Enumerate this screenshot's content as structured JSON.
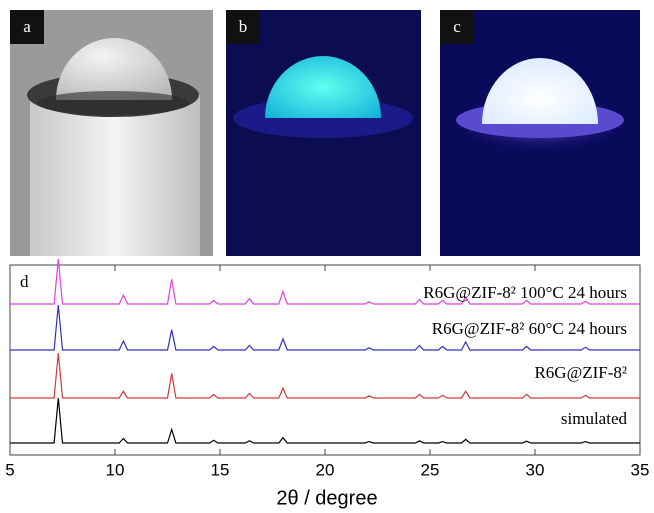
{
  "photos": {
    "labels": [
      "a",
      "b",
      "c"
    ]
  },
  "chart_data": {
    "type": "line",
    "panel_label": "d",
    "x_label": "2θ / degree",
    "x": [
      5,
      7.1,
      7.3,
      7.5,
      10.2,
      10.4,
      10.6,
      12.5,
      12.7,
      12.9,
      14.5,
      14.7,
      14.9,
      16.2,
      16.4,
      16.6,
      17.8,
      18.0,
      18.2,
      21.9,
      22.1,
      22.3,
      24.3,
      24.5,
      24.7,
      25.4,
      25.6,
      25.8,
      26.5,
      26.7,
      26.9,
      29.4,
      29.6,
      29.8,
      32.2,
      32.4,
      32.6,
      35
    ],
    "xlim": [
      5,
      35
    ],
    "xticks": [
      5,
      10,
      15,
      20,
      25,
      30,
      35
    ],
    "series": [
      {
        "name": "simulated",
        "color": "#000000",
        "values": [
          0,
          0,
          100,
          0,
          0,
          10,
          0,
          0,
          30,
          0,
          0,
          6,
          0,
          0,
          5,
          0,
          0,
          12,
          0,
          0,
          3,
          0,
          0,
          5,
          0,
          0,
          3,
          0,
          0,
          8,
          0,
          0,
          4,
          0,
          0,
          3,
          0,
          0
        ]
      },
      {
        "name": "R6G@ZIF-8²",
        "color": "#d03a3a",
        "values": [
          0,
          0,
          100,
          0,
          0,
          15,
          0,
          0,
          55,
          0,
          0,
          8,
          0,
          0,
          10,
          0,
          0,
          22,
          0,
          0,
          5,
          0,
          0,
          8,
          0,
          0,
          6,
          0,
          0,
          15,
          0,
          0,
          8,
          0,
          0,
          6,
          0,
          0
        ]
      },
      {
        "name": "R6G@ZIF-8² 60°C 24 hours",
        "color": "#3030c0",
        "values": [
          0,
          0,
          100,
          0,
          0,
          20,
          0,
          0,
          45,
          0,
          0,
          8,
          0,
          0,
          10,
          0,
          0,
          25,
          0,
          0,
          5,
          0,
          0,
          10,
          0,
          0,
          8,
          0,
          0,
          18,
          0,
          0,
          8,
          0,
          0,
          6,
          0,
          0
        ]
      },
      {
        "name": "R6G@ZIF-8² 100°C 24 hours",
        "color": "#e040e0",
        "values": [
          0,
          0,
          100,
          0,
          0,
          20,
          0,
          0,
          55,
          0,
          0,
          8,
          0,
          0,
          12,
          0,
          0,
          28,
          0,
          0,
          5,
          0,
          0,
          10,
          0,
          0,
          8,
          0,
          0,
          15,
          0,
          0,
          8,
          0,
          0,
          6,
          0,
          0
        ]
      }
    ]
  }
}
